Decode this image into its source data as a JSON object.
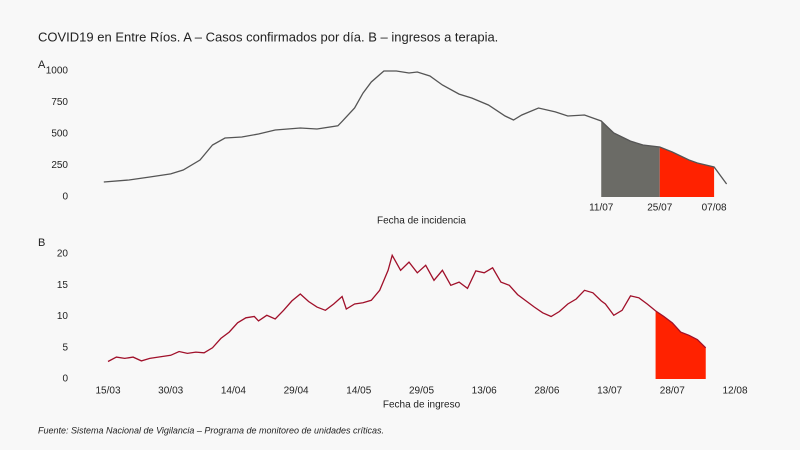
{
  "title": "COVID19 en Entre Ríos. A – Casos confirmados por día. B – ingresos a terapia.",
  "source": "Fuente: Sistema Nacional de Vigilancia – Programa de monitoreo de unidades críticas.",
  "chart_data": [
    {
      "type": "line",
      "panel_label": "A",
      "x_label": "Fecha de incidencia",
      "color": "#555555",
      "x": [
        "14/03",
        "20/03",
        "25/03",
        "30/03",
        "02/04",
        "06/04",
        "09/04",
        "12/04",
        "16/04",
        "20/04",
        "24/04",
        "30/04",
        "04/05",
        "09/05",
        "10/05",
        "13/05",
        "15/05",
        "17/05",
        "20/05",
        "23/05",
        "26/05",
        "28/05",
        "31/05",
        "03/06",
        "07/06",
        "10/06",
        "14/06",
        "18/06",
        "20/06",
        "22/06",
        "26/06",
        "30/06",
        "03/07",
        "07/07",
        "11/07",
        "14/07",
        "18/07",
        "21/07",
        "25/07",
        "28/07",
        "01/08",
        "03/08",
        "07/08",
        "10/08"
      ],
      "values": [
        119,
        135,
        159,
        183,
        214,
        294,
        413,
        468,
        476,
        500,
        532,
        548,
        540,
        565,
        600,
        706,
        825,
        913,
        1000,
        1000,
        984,
        992,
        960,
        889,
        817,
        786,
        730,
        643,
        611,
        651,
        706,
        675,
        643,
        651,
        603,
        508,
        444,
        413,
        397,
        357,
        294,
        270,
        238,
        103
      ],
      "xlim": [
        "15/03",
        "12/08"
      ],
      "xticks": [
        "11/07",
        "25/07",
        "07/08"
      ],
      "ylim": [
        0,
        1000
      ],
      "yticks": [
        0,
        250,
        500,
        750,
        1000
      ],
      "regions": [
        {
          "from": "11/07",
          "to": "25/07",
          "color": "#6b6b66"
        },
        {
          "from": "25/07",
          "to": "07/08",
          "color": "#ff2200"
        }
      ]
    },
    {
      "type": "line",
      "panel_label": "B",
      "x_label": "Fecha de ingreso",
      "color": "#a0102a",
      "x": [
        "15/03",
        "17/03",
        "19/03",
        "21/03",
        "23/03",
        "25/03",
        "28/03",
        "30/03",
        "01/04",
        "03/04",
        "05/04",
        "07/04",
        "09/04",
        "11/04",
        "13/04",
        "15/04",
        "17/04",
        "19/04",
        "20/04",
        "22/04",
        "24/04",
        "26/04",
        "28/04",
        "30/04",
        "02/05",
        "04/05",
        "06/05",
        "08/05",
        "10/05",
        "11/05",
        "13/05",
        "15/05",
        "17/05",
        "19/05",
        "21/05",
        "22/05",
        "24/05",
        "26/05",
        "28/05",
        "30/05",
        "01/06",
        "03/06",
        "05/06",
        "07/06",
        "09/06",
        "11/06",
        "13/06",
        "15/06",
        "17/06",
        "19/06",
        "21/06",
        "23/06",
        "25/06",
        "27/06",
        "29/06",
        "01/07",
        "03/07",
        "05/07",
        "07/07",
        "09/07",
        "11/07",
        "12/07",
        "14/07",
        "16/07",
        "18/07",
        "20/07",
        "22/07",
        "24/07",
        "26/07",
        "28/07",
        "30/07",
        "01/08",
        "03/08",
        "05/08"
      ],
      "values": [
        2.8,
        3.5,
        3.3,
        3.5,
        2.9,
        3.3,
        3.6,
        3.8,
        4.4,
        4.1,
        4.3,
        4.2,
        5.0,
        6.5,
        7.5,
        9.0,
        9.8,
        10.0,
        9.3,
        10.2,
        9.6,
        11.0,
        12.5,
        13.6,
        12.4,
        11.5,
        11.0,
        12.0,
        13.2,
        11.2,
        12.0,
        12.2,
        12.6,
        14.2,
        17.4,
        19.8,
        17.4,
        18.7,
        17.0,
        18.2,
        15.8,
        17.4,
        15.0,
        15.5,
        14.5,
        17.3,
        17.0,
        17.8,
        15.5,
        15.0,
        13.5,
        12.5,
        11.5,
        10.6,
        10.0,
        10.8,
        12.0,
        12.8,
        14.2,
        13.8,
        12.5,
        12.0,
        10.2,
        11.0,
        13.3,
        13.0,
        12.0,
        10.9,
        10.0,
        9.0,
        7.5,
        7.0,
        6.3,
        5.0
      ],
      "xlim": [
        "15/03",
        "12/08"
      ],
      "xticks": [
        "15/03",
        "30/03",
        "14/04",
        "29/04",
        "14/05",
        "29/05",
        "13/06",
        "28/06",
        "13/07",
        "28/07",
        "12/08"
      ],
      "ylim": [
        0,
        20
      ],
      "yticks": [
        0,
        5,
        10,
        15,
        20
      ],
      "regions": [
        {
          "from": "24/07",
          "to": "05/08",
          "color": "#ff2200"
        }
      ]
    }
  ]
}
